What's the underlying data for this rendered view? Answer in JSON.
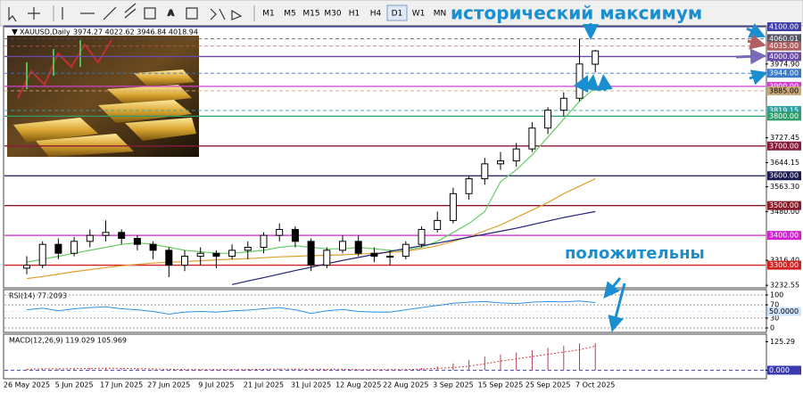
{
  "toolbar": {
    "timeframes": [
      "M1",
      "M5",
      "M15",
      "M30",
      "H1",
      "H4",
      "D1",
      "W1",
      "MN"
    ],
    "active": "D1"
  },
  "annotations": [
    "исторический максимум",
    "положительны"
  ],
  "chart_data": [
    {
      "type": "candlestick",
      "title": "XAUUSD,Daily",
      "subtitle": "3974.27 4022.62 3946.84 4018.94",
      "x": [
        "26 May 2025",
        null,
        null,
        "5 Jun 2025",
        null,
        null,
        "17 Jun 2025",
        null,
        null,
        "27 Jun 2025",
        null,
        null,
        "9 Jul 2025",
        null,
        null,
        "21 Jul 2025",
        null,
        null,
        "31 Jul 2025",
        null,
        null,
        "12 Aug 2025",
        null,
        null,
        "22 Aug 2025",
        null,
        null,
        "3 Sep 2025",
        null,
        null,
        "15 Sep 2025",
        null,
        null,
        "25 Sep 2025",
        null,
        null,
        "7 Oct 2025"
      ],
      "open": [
        3290,
        3300,
        3370,
        3340,
        3380,
        3400,
        3410,
        3390,
        3370,
        3350,
        3300,
        3330,
        3340,
        3330,
        3350,
        3360,
        3400,
        3420,
        3380,
        3300,
        3350,
        3380,
        3340,
        3330,
        3330,
        3370,
        3420,
        3450,
        3540,
        3590,
        3640,
        3650,
        3690,
        3760,
        3820,
        3860,
        3974.27
      ],
      "high": [
        3330,
        3380,
        3390,
        3395,
        3420,
        3450,
        3420,
        3400,
        3380,
        3360,
        3350,
        3360,
        3350,
        3370,
        3380,
        3410,
        3440,
        3430,
        3390,
        3360,
        3400,
        3400,
        3360,
        3350,
        3380,
        3430,
        3480,
        3560,
        3600,
        3660,
        3680,
        3710,
        3780,
        3830,
        3880,
        4059,
        4022.62
      ],
      "low": [
        3270,
        3290,
        3320,
        3330,
        3360,
        3380,
        3370,
        3350,
        3320,
        3260,
        3280,
        3300,
        3290,
        3320,
        3320,
        3340,
        3380,
        3360,
        3280,
        3290,
        3340,
        3330,
        3310,
        3300,
        3320,
        3360,
        3410,
        3440,
        3520,
        3570,
        3620,
        3630,
        3680,
        3740,
        3800,
        3850,
        3946.84
      ],
      "close": [
        3300,
        3370,
        3340,
        3380,
        3400,
        3410,
        3390,
        3370,
        3350,
        3300,
        3330,
        3340,
        3330,
        3350,
        3360,
        3400,
        3420,
        3380,
        3300,
        3350,
        3380,
        3340,
        3330,
        3330,
        3370,
        3420,
        3450,
        3540,
        3590,
        3640,
        3650,
        3690,
        3760,
        3820,
        3860,
        3975,
        4018.94
      ],
      "series": [
        {
          "color": "#66cc66",
          "values": [
            3310,
            3320,
            3330,
            3340,
            3350,
            3360,
            3370,
            3375,
            3370,
            3360,
            3350,
            3345,
            3340,
            3340,
            3345,
            3350,
            3360,
            3365,
            3360,
            3355,
            3355,
            3360,
            3355,
            3350,
            3350,
            3360,
            3380,
            3410,
            3440,
            3480,
            3580,
            3620,
            3670,
            3730,
            3790,
            3850,
            3895
          ]
        },
        {
          "color": "#e0a030",
          "values": [
            3255,
            3262,
            3270,
            3278,
            3285,
            3292,
            3298,
            3303,
            3307,
            3310,
            3312,
            3315,
            3318,
            3320,
            3322,
            3325,
            3328,
            3330,
            3332,
            3333,
            3335,
            3337,
            3340,
            3343,
            3347,
            3355,
            3365,
            3380,
            3395,
            3415,
            3435,
            3460,
            3485,
            3510,
            3540,
            3565,
            3590
          ]
        },
        {
          "color": "#20207a",
          "values": [
            null,
            null,
            null,
            null,
            null,
            null,
            null,
            null,
            null,
            null,
            null,
            null,
            null,
            3235,
            3247,
            3258,
            3270,
            3282,
            3293,
            3305,
            3316,
            3326,
            3336,
            3346,
            3356,
            3365,
            3374,
            3384,
            3394,
            3404,
            3414,
            3424,
            3436,
            3448,
            3460,
            3470,
            3480
          ]
        }
      ],
      "ylim": [
        3230,
        4100
      ],
      "yticks": [
        {
          "value": 3974.9,
          "label": "3974.90"
        },
        {
          "value": 3727.45,
          "label": "3727.45"
        },
        {
          "value": 3644.15,
          "label": "3644.15"
        },
        {
          "value": 3563.3,
          "label": "3563.30"
        },
        {
          "value": 3480,
          "label": "3480.00"
        },
        {
          "value": 3316.4,
          "label": "3316.40"
        },
        {
          "value": 3232.55,
          "label": "3232.55"
        }
      ],
      "levels": [
        {
          "value": 4100,
          "label": "4100.00",
          "color": "#4040a8",
          "dash": false
        },
        {
          "value": 4060.01,
          "label": "4060.01",
          "color": "#555566",
          "dash": true
        },
        {
          "value": 4035,
          "label": "4035.00",
          "color": "#b06060",
          "dash": true
        },
        {
          "value": 4000,
          "label": "4000.00",
          "color": "#6a4aa8",
          "dash": false
        },
        {
          "value": 3944,
          "label": "3944.00",
          "color": "#3a78c8",
          "dash": true
        },
        {
          "value": 3900,
          "label": "3900.00",
          "color": "#d040d0",
          "dash": false
        },
        {
          "value": 3885,
          "label": "3885.00",
          "color": "#c8a878",
          "dash": true
        },
        {
          "value": 3819.15,
          "label": "3819.15",
          "color": "#30a0a0",
          "dash": true
        },
        {
          "value": 3800,
          "label": "3800.00",
          "color": "#2e9e6a",
          "dash": false
        },
        {
          "value": 3700,
          "label": "3700.00",
          "color": "#8a1a3a",
          "dash": false
        },
        {
          "value": 3600,
          "label": "3600.00",
          "color": "#1a1a50",
          "dash": false
        },
        {
          "value": 3500,
          "label": "3500.00",
          "color": "#8a1a2a",
          "dash": false
        },
        {
          "value": 3400,
          "label": "3400.00",
          "color": "#d020d0",
          "dash": false
        },
        {
          "value": 3300,
          "label": "3300.00",
          "color": "#d02020",
          "dash": false
        }
      ]
    },
    {
      "type": "line",
      "title": "RSI(14) 77.2093",
      "color": "#3090e0",
      "values": [
        55,
        60,
        52,
        58,
        62,
        64,
        58,
        55,
        50,
        42,
        48,
        50,
        48,
        52,
        54,
        58,
        62,
        55,
        44,
        52,
        56,
        50,
        48,
        48,
        55,
        62,
        68,
        75,
        78,
        80,
        76,
        74,
        78,
        80,
        79,
        82,
        77
      ],
      "ylim": [
        0,
        100
      ],
      "yticks": [
        100,
        70,
        30,
        0
      ],
      "grid": true,
      "levels": [
        {
          "value": 50,
          "label": "50.0000",
          "color": "#cfe3ff",
          "dash": true
        }
      ]
    },
    {
      "type": "bar",
      "title": "MACD(12,26,9) 119.029 105.969",
      "color": "#b04060",
      "signal_color": "#d04040",
      "values": [
        5,
        8,
        6,
        7,
        9,
        10,
        8,
        6,
        4,
        2,
        3,
        3,
        2,
        3,
        4,
        5,
        7,
        5,
        2,
        3,
        4,
        3,
        2,
        2,
        4,
        10,
        18,
        30,
        45,
        60,
        70,
        78,
        88,
        98,
        108,
        118,
        119
      ],
      "signal": [
        4,
        6,
        6,
        7,
        8,
        9,
        8,
        7,
        6,
        4,
        3,
        3,
        3,
        3,
        3,
        4,
        5,
        5,
        4,
        4,
        4,
        3,
        3,
        3,
        3,
        5,
        8,
        12,
        18,
        28,
        40,
        50,
        60,
        70,
        80,
        90,
        106
      ],
      "ylim": [
        -10,
        135
      ],
      "yticks": [
        {
          "value": 125.29,
          "label": "125.29"
        },
        {
          "value": 0,
          "label": "0.000"
        }
      ],
      "levels": [
        {
          "value": 0,
          "label": "0.000",
          "color": "#3a3ab0",
          "dash": true
        }
      ]
    }
  ]
}
